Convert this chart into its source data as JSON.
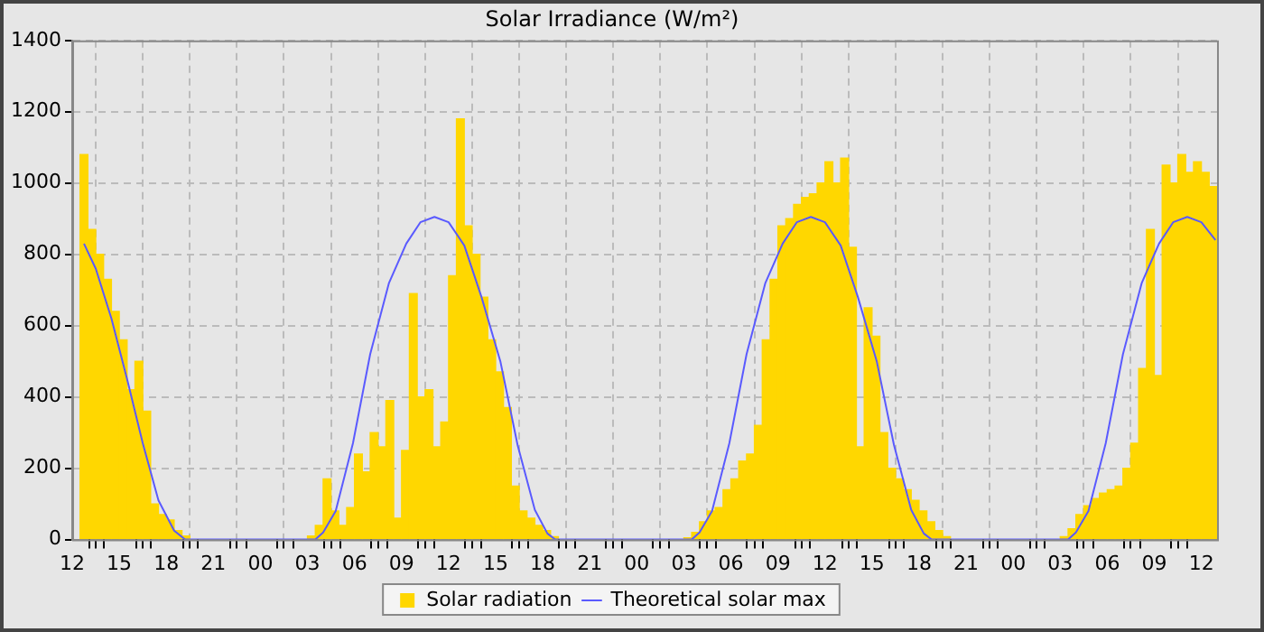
{
  "chart_data": {
    "type": "bar",
    "title": "Solar Irradiance (W/m²)",
    "series": [
      {
        "name": "Solar radiation",
        "color": "#ffd700",
        "x": [
          12.75,
          13.25,
          13.75,
          14.25,
          14.75,
          15.25,
          15.75,
          16.25,
          16.75,
          17.25,
          17.75,
          18.25,
          18.75,
          19.25,
          27.25,
          27.75,
          28.25,
          28.75,
          29.25,
          29.75,
          30.25,
          30.75,
          31.25,
          31.75,
          32.25,
          32.75,
          33.25,
          33.75,
          34.25,
          34.75,
          35.25,
          35.75,
          36.25,
          36.75,
          37.25,
          37.75,
          38.25,
          38.75,
          39.25,
          39.75,
          40.25,
          40.75,
          41.25,
          41.75,
          42.25,
          42.75,
          51.25,
          51.75,
          52.25,
          52.75,
          53.25,
          53.75,
          54.25,
          54.75,
          55.25,
          55.75,
          56.25,
          56.75,
          57.25,
          57.75,
          58.25,
          58.75,
          59.25,
          59.75,
          60.25,
          60.75,
          61.25,
          61.75,
          62.25,
          62.75,
          63.25,
          63.75,
          64.25,
          64.75,
          65.25,
          65.75,
          66.25,
          66.75,
          67.25,
          67.75,
          75.25,
          75.75,
          76.25,
          76.75,
          77.25,
          77.75,
          78.25,
          78.75,
          79.25,
          79.75,
          80.25,
          80.75,
          81.25,
          81.75,
          82.25,
          82.75,
          83.25,
          83.75,
          84.25,
          84.75
        ],
        "values": [
          1080,
          870,
          800,
          730,
          640,
          560,
          420,
          500,
          360,
          100,
          70,
          55,
          25,
          10,
          10,
          40,
          170,
          80,
          40,
          90,
          240,
          190,
          300,
          260,
          390,
          60,
          250,
          690,
          400,
          420,
          260,
          330,
          740,
          1180,
          880,
          800,
          680,
          560,
          470,
          370,
          150,
          80,
          60,
          40,
          25,
          8,
          5,
          20,
          50,
          80,
          90,
          140,
          170,
          220,
          240,
          320,
          560,
          730,
          880,
          900,
          940,
          960,
          970,
          1000,
          1060,
          1000,
          1070,
          820,
          260,
          650,
          570,
          300,
          200,
          170,
          140,
          110,
          80,
          50,
          25,
          8,
          8,
          30,
          70,
          95,
          115,
          130,
          140,
          150,
          200,
          270,
          480,
          870,
          460,
          1050,
          1000,
          1080,
          1030,
          1060,
          1030,
          990
        ]
      },
      {
        "name": "Theoretical solar max",
        "type": "line",
        "color": "#5a5aff",
        "x": [
          12.75,
          13.5,
          14.5,
          15.5,
          16.5,
          17.5,
          18.5,
          19.2,
          27.5,
          28,
          28.8,
          29.9,
          31,
          32.2,
          33.3,
          34.2,
          35.1,
          36,
          37,
          38.1,
          39.3,
          40.4,
          41.5,
          42.3,
          42.8,
          51.5,
          52,
          52.8,
          53.9,
          55,
          56.2,
          57.3,
          58.2,
          59.1,
          60,
          61,
          62.1,
          63.3,
          64.4,
          65.5,
          66.3,
          66.8,
          75.5,
          76,
          76.8,
          77.9,
          79,
          80.2,
          81.3,
          82.2,
          83.1,
          84,
          84.9
        ],
        "values": [
          830,
          760,
          620,
          450,
          270,
          110,
          25,
          0,
          0,
          20,
          80,
          270,
          520,
          720,
          830,
          890,
          905,
          890,
          825,
          680,
          500,
          265,
          83,
          17,
          0,
          0,
          20,
          80,
          270,
          520,
          720,
          830,
          890,
          905,
          890,
          825,
          680,
          500,
          265,
          83,
          17,
          0,
          0,
          20,
          80,
          270,
          520,
          720,
          830,
          890,
          905,
          890,
          840
        ]
      }
    ],
    "xlim": [
      12,
      85
    ],
    "xticks": [
      12,
      {
        "value": 13,
        "label": null
      },
      {
        "value": 14,
        "label": null
      },
      15,
      {
        "value": 16,
        "label": null
      },
      {
        "value": 17,
        "label": null
      },
      18,
      {
        "value": 19,
        "label": null
      },
      {
        "value": 20,
        "label": null
      },
      21,
      {
        "value": 22,
        "label": null
      },
      {
        "value": 23,
        "label": null
      },
      {
        "value": 24,
        "label": "00"
      },
      {
        "value": 25,
        "label": null
      },
      {
        "value": 26,
        "label": null
      },
      {
        "value": 27,
        "label": "03"
      },
      {
        "value": 28,
        "label": null
      },
      {
        "value": 29,
        "label": null
      },
      {
        "value": 30,
        "label": "06"
      },
      {
        "value": 31,
        "label": null
      },
      {
        "value": 32,
        "label": null
      },
      {
        "value": 33,
        "label": "09"
      },
      {
        "value": 34,
        "label": null
      },
      {
        "value": 35,
        "label": null
      },
      {
        "value": 36,
        "label": "12"
      },
      {
        "value": 37,
        "label": null
      },
      {
        "value": 38,
        "label": null
      },
      {
        "value": 39,
        "label": "15"
      },
      {
        "value": 40,
        "label": null
      },
      {
        "value": 41,
        "label": null
      },
      {
        "value": 42,
        "label": "18"
      },
      {
        "value": 43,
        "label": null
      },
      {
        "value": 44,
        "label": null
      },
      {
        "value": 45,
        "label": "21"
      },
      {
        "value": 46,
        "label": null
      },
      {
        "value": 47,
        "label": null
      },
      {
        "value": 48,
        "label": "00"
      },
      {
        "value": 49,
        "label": null
      },
      {
        "value": 50,
        "label": null
      },
      {
        "value": 51,
        "label": "03"
      },
      {
        "value": 52,
        "label": null
      },
      {
        "value": 53,
        "label": null
      },
      {
        "value": 54,
        "label": "06"
      },
      {
        "value": 55,
        "label": null
      },
      {
        "value": 56,
        "label": null
      },
      {
        "value": 57,
        "label": "09"
      },
      {
        "value": 58,
        "label": null
      },
      {
        "value": 59,
        "label": null
      },
      {
        "value": 60,
        "label": "12"
      },
      {
        "value": 61,
        "label": null
      },
      {
        "value": 62,
        "label": null
      },
      {
        "value": 63,
        "label": "15"
      },
      {
        "value": 64,
        "label": null
      },
      {
        "value": 65,
        "label": null
      },
      {
        "value": 66,
        "label": "18"
      },
      {
        "value": 67,
        "label": null
      },
      {
        "value": 68,
        "label": null
      },
      {
        "value": 69,
        "label": "21"
      },
      {
        "value": 70,
        "label": null
      },
      {
        "value": 71,
        "label": null
      },
      {
        "value": 72,
        "label": "00"
      },
      {
        "value": 73,
        "label": null
      },
      {
        "value": 74,
        "label": null
      },
      {
        "value": 75,
        "label": "03"
      },
      {
        "value": 76,
        "label": null
      },
      {
        "value": 77,
        "label": null
      },
      {
        "value": 78,
        "label": "06"
      },
      {
        "value": 79,
        "label": null
      },
      {
        "value": 80,
        "label": null
      },
      {
        "value": 81,
        "label": "09"
      },
      {
        "value": 82,
        "label": null
      },
      {
        "value": 83,
        "label": null
      },
      {
        "value": 84,
        "label": "12"
      }
    ],
    "ylim": [
      0,
      1400
    ],
    "yticks": [
      0,
      200,
      400,
      600,
      800,
      1000,
      1200,
      1400
    ],
    "grid": true,
    "legend": "bottom"
  }
}
